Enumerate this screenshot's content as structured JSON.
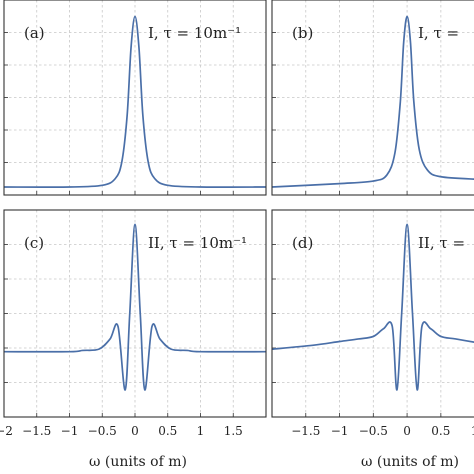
{
  "chart_data": [
    {
      "panel": "(a)",
      "type": "line",
      "annotation": "I, τ = 10m⁻¹",
      "x_ticks": [
        "−2",
        "−1.5",
        "−1",
        "−0.5",
        "0",
        "0.5",
        "1",
        "1.5"
      ],
      "xlim": [
        -2,
        2
      ],
      "ylim": [
        0,
        1.05
      ],
      "grid": true,
      "series": [
        {
          "color": "#4a6fa8",
          "x": [
            -2,
            -1.0,
            -0.5,
            -0.3,
            -0.2,
            -0.12,
            -0.06,
            0,
            0.06,
            0.12,
            0.2,
            0.3,
            0.5,
            1.0,
            2
          ],
          "y": [
            0.0,
            0.0,
            0.01,
            0.05,
            0.15,
            0.42,
            0.82,
            1.0,
            0.82,
            0.42,
            0.15,
            0.05,
            0.01,
            0.0,
            0.0
          ]
        }
      ]
    },
    {
      "panel": "(b)",
      "type": "line",
      "annotation": "I, τ =",
      "x_ticks": [
        "−1.5",
        "−1",
        "−0.5",
        "0",
        "0.5",
        "1"
      ],
      "xlim": [
        -2,
        1.05
      ],
      "ylim": [
        0,
        1.05
      ],
      "grid": true,
      "series": [
        {
          "color": "#4a6fa8",
          "x": [
            -2,
            -1.0,
            -0.5,
            -0.3,
            -0.18,
            -0.1,
            -0.05,
            0,
            0.05,
            0.1,
            0.18,
            0.3,
            0.5,
            1.05
          ],
          "y": [
            0.0,
            0.02,
            0.035,
            0.07,
            0.2,
            0.5,
            0.85,
            1.0,
            0.85,
            0.5,
            0.22,
            0.1,
            0.06,
            0.045
          ]
        }
      ]
    },
    {
      "panel": "(c)",
      "type": "line",
      "annotation": "II, τ = 10m⁻¹",
      "x_ticks": [
        "−2",
        "−1.5",
        "−1",
        "−0.5",
        "0",
        "0.5",
        "1",
        "1.5"
      ],
      "xlim": [
        -2,
        2
      ],
      "ylim": [
        -0.45,
        1.05
      ],
      "grid": true,
      "series": [
        {
          "color": "#4a6fa8",
          "x": [
            -2,
            -1.0,
            -0.8,
            -0.55,
            -0.38,
            -0.26,
            -0.15,
            -0.08,
            0,
            0.08,
            0.15,
            0.26,
            0.38,
            0.55,
            0.8,
            1.0,
            2
          ],
          "y": [
            0.0,
            0.0,
            0.01,
            0.02,
            0.1,
            0.2,
            -0.3,
            0.3,
            1.0,
            0.3,
            -0.3,
            0.2,
            0.1,
            0.02,
            0.01,
            0.0,
            0.0
          ]
        }
      ]
    },
    {
      "panel": "(d)",
      "type": "line",
      "annotation": "II, τ =",
      "x_ticks": [
        "−1.5",
        "−1",
        "−0.5",
        "0",
        "0.5",
        "1"
      ],
      "xlim": [
        -2,
        1.05
      ],
      "ylim": [
        -0.45,
        1.05
      ],
      "grid": true,
      "series": [
        {
          "color": "#4a6fa8",
          "x": [
            -2,
            -1.4,
            -1.0,
            -0.72,
            -0.5,
            -0.35,
            -0.22,
            -0.15,
            -0.08,
            0,
            0.08,
            0.15,
            0.22,
            0.35,
            0.5,
            0.72,
            1.05
          ],
          "y": [
            0.02,
            0.05,
            0.08,
            0.1,
            0.12,
            0.18,
            0.2,
            -0.3,
            0.3,
            1.0,
            0.3,
            -0.3,
            0.2,
            0.18,
            0.12,
            0.1,
            0.07
          ]
        }
      ]
    }
  ],
  "shared": {
    "xlabel_a": "ω (units of m)",
    "xlabel_b": "ω (units of m)"
  }
}
